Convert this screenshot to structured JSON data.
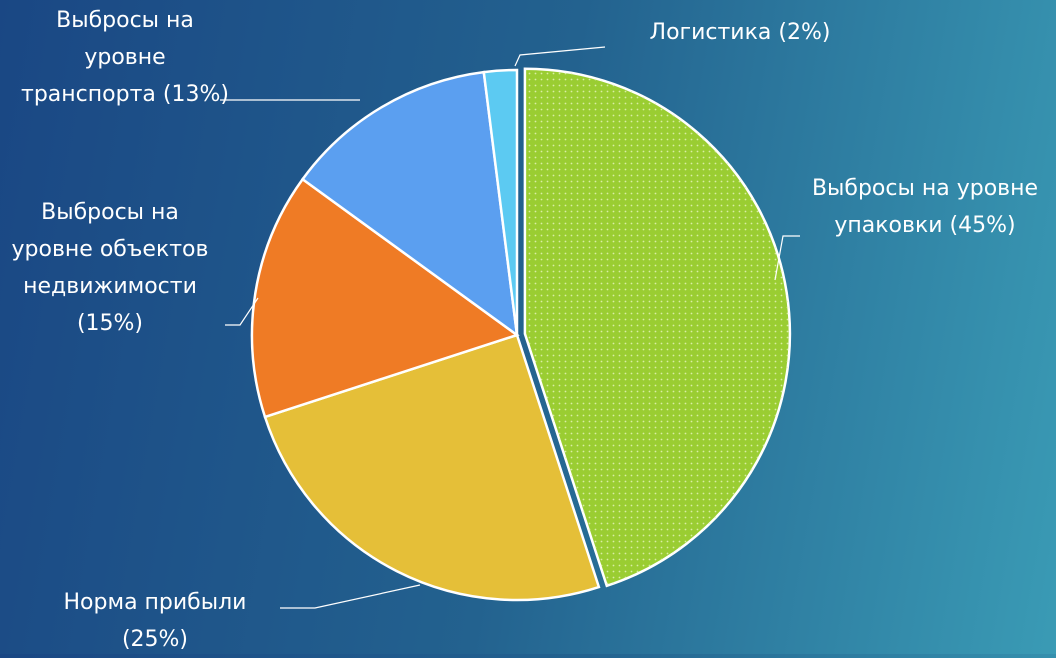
{
  "chart_data": {
    "type": "pie",
    "categories": [
      "Выбросы на уровне упаковки",
      "Норма прибыли",
      "Выбросы на уровне объектов недвижимости",
      "Выбросы на уровне транспорта",
      "Логистика"
    ],
    "values": [
      45,
      25,
      15,
      13,
      2
    ],
    "value_labels": [
      "(45%)",
      "(25%)",
      "(15%)",
      "(13%)",
      "(2%)"
    ],
    "colors": [
      "#9acd32",
      "#e5bf38",
      "#ef7b25",
      "#5b9ff0",
      "#5ccaf2"
    ]
  }
}
